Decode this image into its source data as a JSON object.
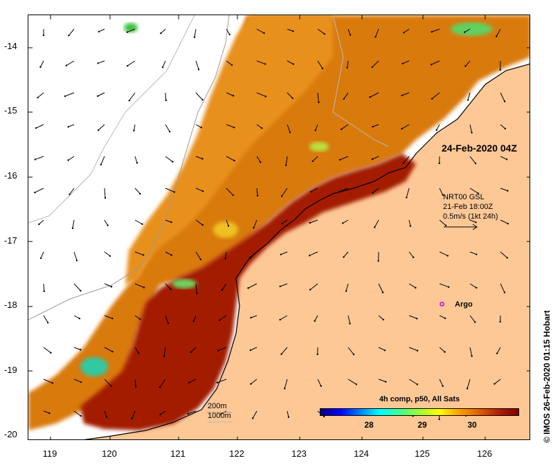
{
  "map": {
    "title": "",
    "latitude_ticks": [
      "-14",
      "-15",
      "-16",
      "-17",
      "-18",
      "-19",
      "-20"
    ],
    "longitude_ticks": [
      "119",
      "120",
      "121",
      "122",
      "123",
      "124",
      "125",
      "126"
    ],
    "image_time": "24-Feb-2020 04Z",
    "current_product": "NRT00 GSL",
    "current_time": "21-Feb 18:00Z",
    "current_scale": "0.5m/s (1kt 24h)",
    "argo_label": "Argo",
    "depth_contours": [
      "200m",
      "1000m"
    ],
    "colorbar": {
      "title": "4h comp, p50, All Sats",
      "ticks": [
        "28",
        "29",
        "30"
      ],
      "colors": [
        "#00007f",
        "#0000ff",
        "#0080ff",
        "#00ffff",
        "#40ff90",
        "#a0ff30",
        "#ffff00",
        "#ffa000",
        "#e06000",
        "#b02000",
        "#800000"
      ]
    },
    "credit": "© IMOS 26-Feb-2020 01:15 Hobart",
    "land_color": "#fdc896"
  }
}
